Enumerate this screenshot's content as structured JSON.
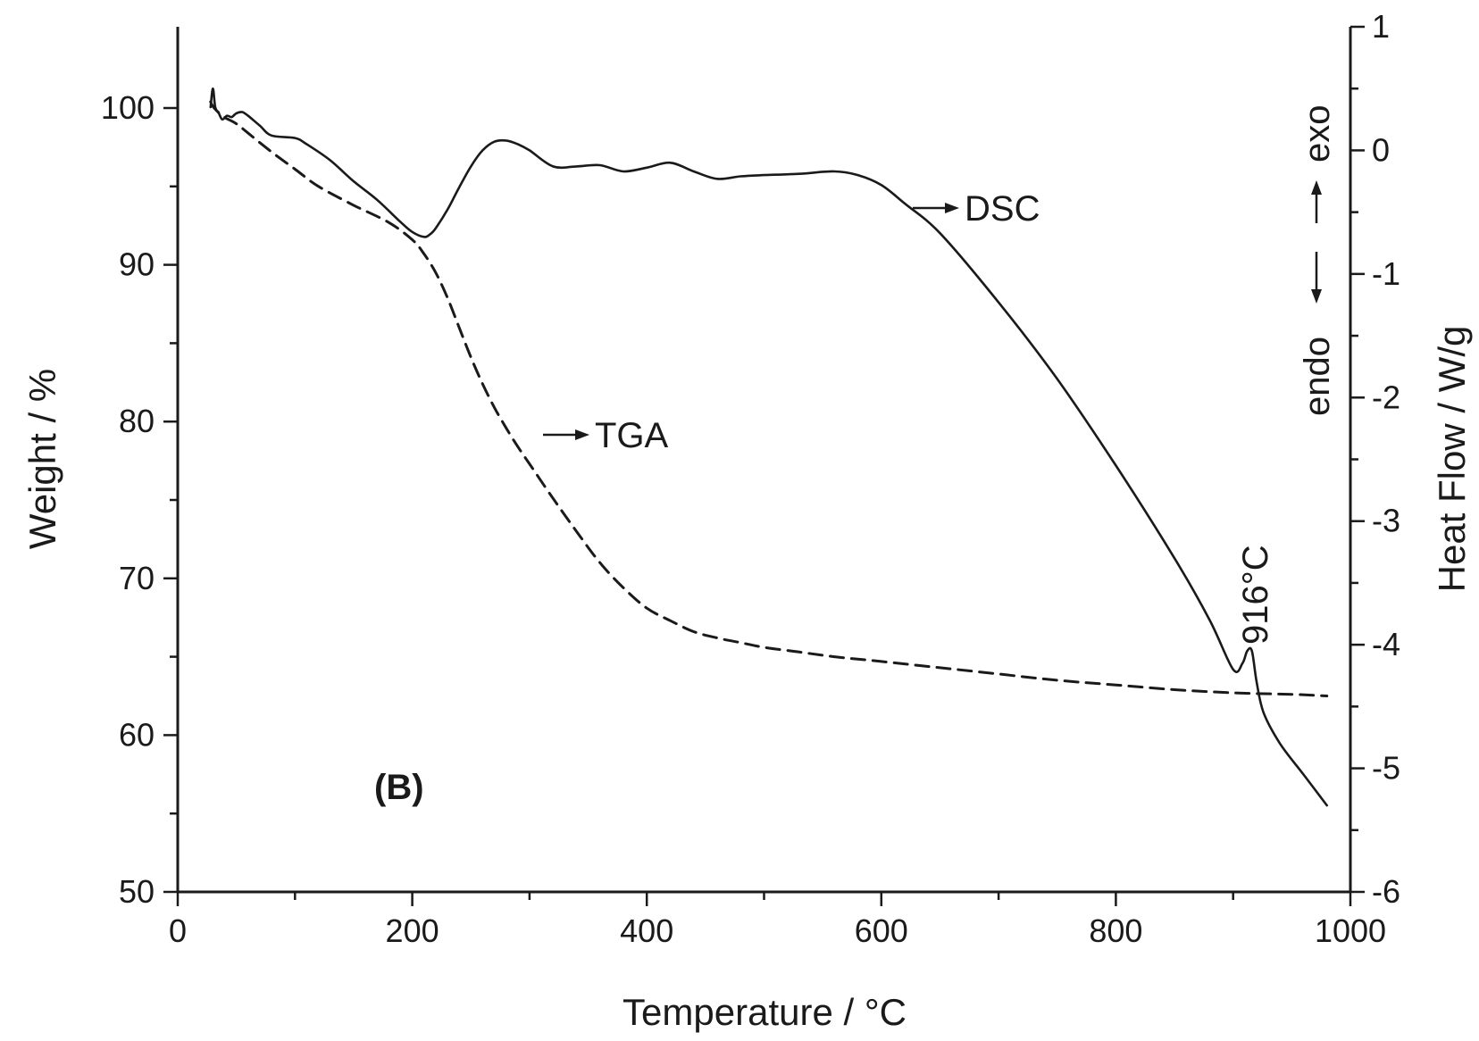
{
  "chart_data": {
    "type": "line",
    "panel_label": "(B)",
    "xlabel": "Temperature / °C",
    "ylabel_left": "Weight / %",
    "ylabel_right": "Heat Flow / W/g",
    "xlim": [
      0,
      1000
    ],
    "ylim_left": [
      50,
      105
    ],
    "ylim_right": [
      -6,
      1
    ],
    "x_ticks": [
      0,
      200,
      400,
      600,
      800,
      1000
    ],
    "y_left_ticks": [
      50,
      60,
      70,
      80,
      90,
      100
    ],
    "y_right_ticks": [
      -6,
      -5,
      -4,
      -3,
      -2,
      -1,
      0,
      1
    ],
    "grid": false,
    "series": [
      {
        "name": "TGA",
        "axis": "left",
        "style": "dashed",
        "x": [
          28,
          30,
          35,
          40,
          50,
          60,
          80,
          100,
          120,
          150,
          180,
          200,
          210,
          220,
          230,
          240,
          250,
          260,
          270,
          280,
          290,
          300,
          320,
          340,
          360,
          380,
          400,
          420,
          440,
          460,
          480,
          500,
          530,
          560,
          600,
          650,
          700,
          750,
          800,
          850,
          900,
          950,
          980
        ],
        "y": [
          100.4,
          100.1,
          99.7,
          99.4,
          99.0,
          98.4,
          97.2,
          96.1,
          95.0,
          93.8,
          92.7,
          91.6,
          90.7,
          89.5,
          87.9,
          86.0,
          84.1,
          82.4,
          80.9,
          79.6,
          78.4,
          77.3,
          75.1,
          73.0,
          71.0,
          69.4,
          68.1,
          67.3,
          66.6,
          66.2,
          65.9,
          65.6,
          65.3,
          65.0,
          64.7,
          64.3,
          63.9,
          63.5,
          63.2,
          62.9,
          62.7,
          62.6,
          62.5
        ]
      },
      {
        "name": "DSC",
        "axis": "right",
        "style": "solid",
        "x": [
          28,
          30,
          32,
          35,
          38,
          42,
          46,
          50,
          55,
          60,
          70,
          80,
          100,
          110,
          130,
          150,
          170,
          190,
          200,
          210,
          215,
          220,
          230,
          240,
          250,
          260,
          270,
          280,
          290,
          300,
          320,
          340,
          360,
          380,
          400,
          420,
          440,
          460,
          480,
          500,
          530,
          560,
          580,
          600,
          620,
          650,
          700,
          750,
          800,
          850,
          880,
          900,
          908,
          912,
          916,
          920,
          926,
          940,
          960,
          980
        ],
        "y": [
          0.35,
          0.5,
          0.35,
          0.3,
          0.25,
          0.28,
          0.27,
          0.3,
          0.31,
          0.28,
          0.2,
          0.12,
          0.1,
          0.05,
          -0.08,
          -0.25,
          -0.4,
          -0.58,
          -0.66,
          -0.7,
          -0.68,
          -0.63,
          -0.48,
          -0.3,
          -0.13,
          0.0,
          0.07,
          0.08,
          0.05,
          0.0,
          -0.13,
          -0.13,
          -0.12,
          -0.17,
          -0.14,
          -0.1,
          -0.17,
          -0.23,
          -0.21,
          -0.2,
          -0.19,
          -0.17,
          -0.2,
          -0.28,
          -0.43,
          -0.67,
          -1.23,
          -1.85,
          -2.55,
          -3.3,
          -3.8,
          -4.2,
          -4.15,
          -4.05,
          -4.05,
          -4.3,
          -4.55,
          -4.8,
          -5.05,
          -5.3
        ]
      }
    ],
    "annotations": {
      "tga_label": "TGA",
      "dsc_label": "DSC",
      "peak_label": "916°C",
      "exo_label": "exo",
      "endo_label": "endo"
    }
  }
}
